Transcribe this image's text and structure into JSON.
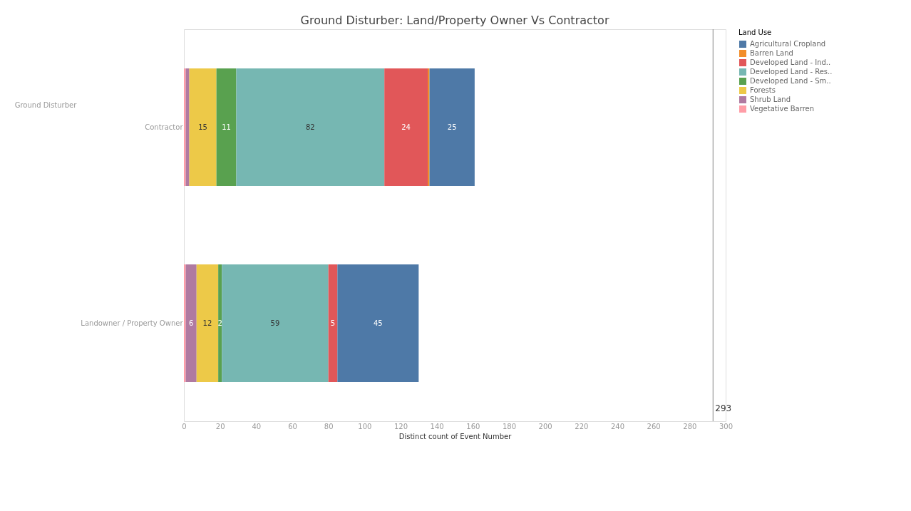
{
  "chart_data": {
    "type": "bar",
    "orientation": "horizontal",
    "stacked": true,
    "title": "Ground Disturber: Land/Property Owner Vs Contractor",
    "xlabel": "Distinct count of Event Number",
    "ylabel": "Ground Disturber",
    "legend_title": "Land Use",
    "legend": "right",
    "grid": false,
    "categories": [
      "Contractor",
      "Landowner / Property Owner"
    ],
    "xlim": [
      0,
      300
    ],
    "xticks": [
      0,
      20,
      40,
      60,
      80,
      100,
      120,
      140,
      160,
      180,
      200,
      220,
      240,
      260,
      280,
      300
    ],
    "series": [
      {
        "name": "Vegetative Barren",
        "color": "#ff9da7",
        "values": [
          1,
          1
        ],
        "value_labels": [
          null,
          null
        ]
      },
      {
        "name": "Shrub Land",
        "color": "#b07aa1",
        "values": [
          2,
          6
        ],
        "value_labels": [
          null,
          "6"
        ]
      },
      {
        "name": "Forests",
        "color": "#edc948",
        "values": [
          15,
          12
        ],
        "value_labels": [
          "15",
          "12"
        ]
      },
      {
        "name": "Developed Land - Sm..",
        "color": "#59a14f",
        "values": [
          11,
          2
        ],
        "value_labels": [
          "11",
          "2"
        ]
      },
      {
        "name": "Developed Land - Res..",
        "color": "#76b7b2",
        "values": [
          82,
          59
        ],
        "value_labels": [
          "82",
          "59"
        ]
      },
      {
        "name": "Developed Land - Ind..",
        "color": "#e15759",
        "values": [
          24,
          5
        ],
        "value_labels": [
          "24",
          "5"
        ]
      },
      {
        "name": "Barren Land",
        "color": "#f28e2b",
        "values": [
          1,
          0
        ],
        "value_labels": [
          null,
          null
        ]
      },
      {
        "name": "Agricultural Cropland",
        "color": "#4e79a7",
        "values": [
          25,
          45
        ],
        "value_labels": [
          "25",
          "45"
        ]
      }
    ],
    "ref_lines": [
      {
        "axis": "x",
        "value": 293,
        "label": "293",
        "color": "#888888"
      }
    ]
  }
}
